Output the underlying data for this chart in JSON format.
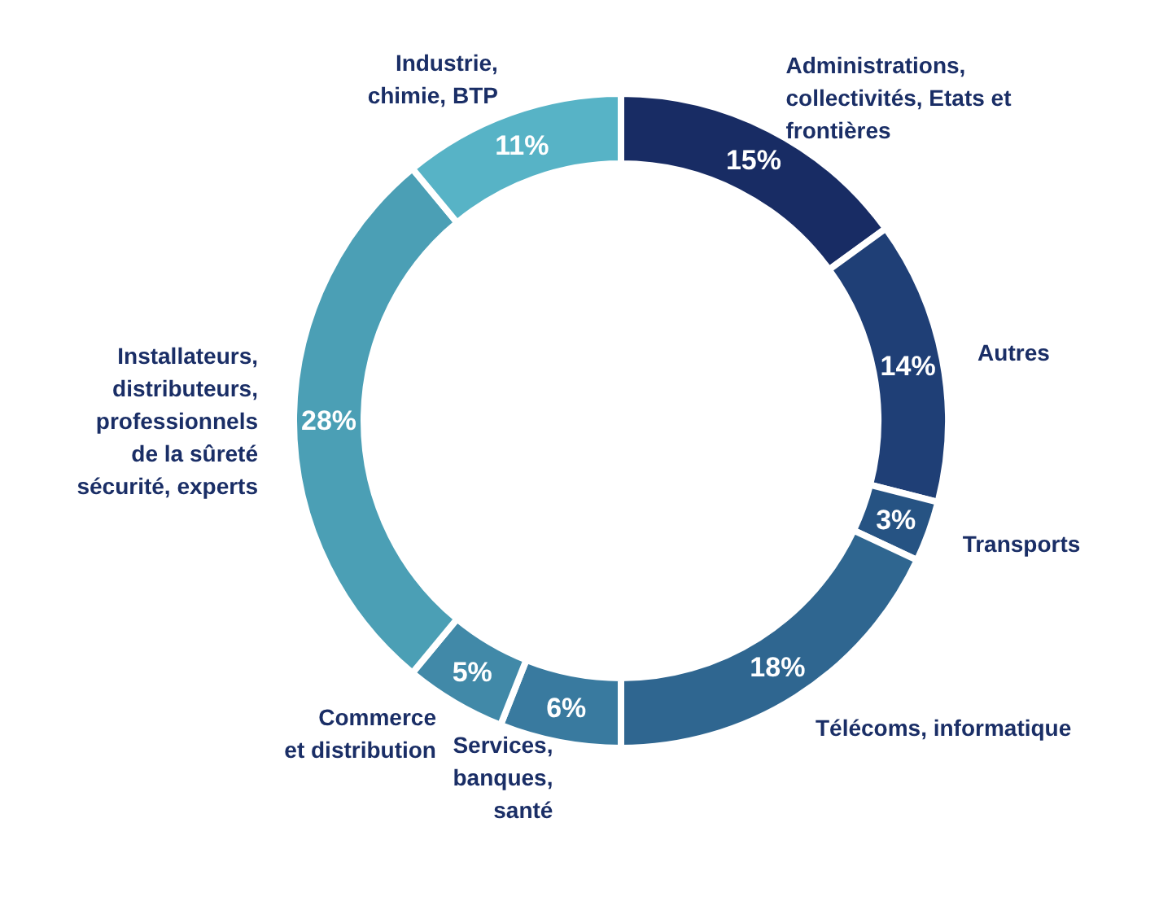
{
  "chart_data": {
    "type": "donut",
    "categories": [
      "Administrations,\ncollectivités, Etats et\nfrontières",
      "Autres",
      "Transports",
      "Télécoms, informatique",
      "Services,\nbanques,\nsanté",
      "Commerce\net distribution",
      "Installateurs,\ndistributeurs,\nprofessionnels\nde la sûreté\nsécurité, experts",
      "Industrie,\nchimie, BTP"
    ],
    "values": [
      15,
      14,
      3,
      18,
      6,
      5,
      28,
      11
    ],
    "colors": [
      "#182c64",
      "#1f3f76",
      "#265383",
      "#2f6690",
      "#397a9f",
      "#4189a8",
      "#4b9fb5",
      "#57b3c6"
    ],
    "value_labels": [
      "15%",
      "14%",
      "3%",
      "18%",
      "6%",
      "5%",
      "28%",
      "11%"
    ]
  }
}
